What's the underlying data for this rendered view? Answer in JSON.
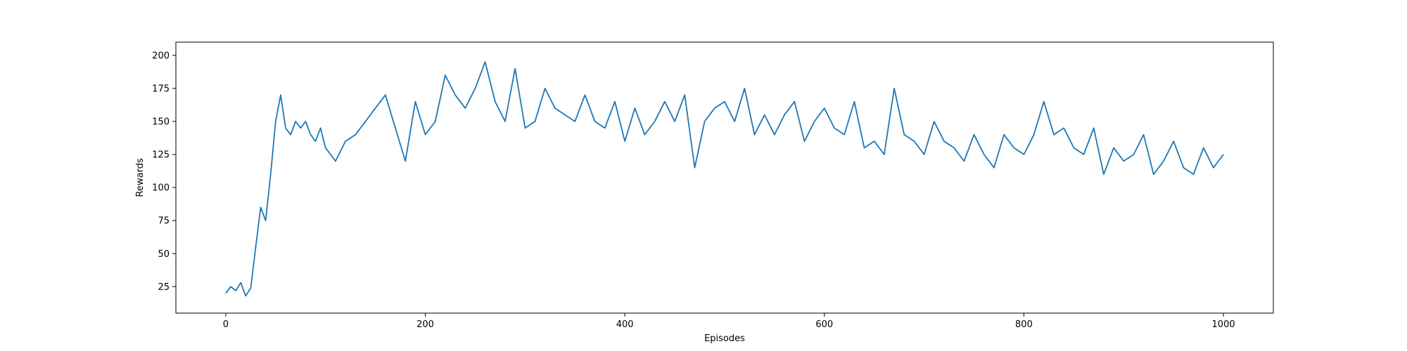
{
  "chart_data": {
    "type": "line",
    "title": "",
    "xlabel": "Episodes",
    "ylabel": "Rewards",
    "xlim": [
      -50,
      1050
    ],
    "ylim": [
      5,
      210
    ],
    "xticks": [
      0,
      200,
      400,
      600,
      800,
      1000
    ],
    "yticks": [
      25,
      50,
      75,
      100,
      125,
      150,
      175,
      200
    ],
    "grid": false,
    "legend": "none",
    "line_color": "#1f77b4",
    "series": [
      {
        "x": [
          0,
          5,
          10,
          15,
          20,
          25,
          30,
          35,
          40,
          45,
          50,
          55,
          60,
          65,
          70,
          75,
          80,
          85,
          90,
          95,
          100,
          110,
          120,
          130,
          140,
          150,
          160,
          170,
          180,
          190,
          200,
          210,
          220,
          230,
          240,
          250,
          260,
          270,
          280,
          290,
          300,
          310,
          320,
          330,
          340,
          350,
          360,
          370,
          380,
          390,
          400,
          410,
          420,
          430,
          440,
          450,
          460,
          470,
          480,
          490,
          500,
          510,
          520,
          530,
          540,
          550,
          560,
          570,
          580,
          590,
          600,
          610,
          620,
          630,
          640,
          650,
          660,
          670,
          680,
          690,
          700,
          710,
          720,
          730,
          740,
          750,
          760,
          770,
          780,
          790,
          800,
          810,
          820,
          830,
          840,
          850,
          860,
          870,
          880,
          890,
          900,
          910,
          920,
          930,
          940,
          950,
          960,
          970,
          980,
          990,
          1000
        ],
        "values": [
          20,
          25,
          22,
          28,
          18,
          24,
          55,
          85,
          75,
          110,
          150,
          170,
          145,
          140,
          150,
          145,
          150,
          140,
          135,
          145,
          130,
          120,
          135,
          140,
          150,
          160,
          170,
          145,
          120,
          165,
          140,
          150,
          185,
          170,
          160,
          175,
          195,
          165,
          150,
          190,
          145,
          150,
          175,
          160,
          155,
          150,
          170,
          150,
          145,
          165,
          135,
          160,
          140,
          150,
          165,
          150,
          170,
          115,
          150,
          160,
          165,
          150,
          175,
          140,
          155,
          140,
          155,
          165,
          135,
          150,
          160,
          145,
          140,
          165,
          130,
          135,
          125,
          175,
          140,
          135,
          125,
          150,
          135,
          130,
          120,
          140,
          125,
          115,
          140,
          130,
          125,
          140,
          165,
          140,
          145,
          130,
          125,
          145,
          110,
          130,
          120,
          125,
          140,
          110,
          120,
          135,
          115,
          110,
          130,
          115,
          125
        ]
      }
    ]
  }
}
